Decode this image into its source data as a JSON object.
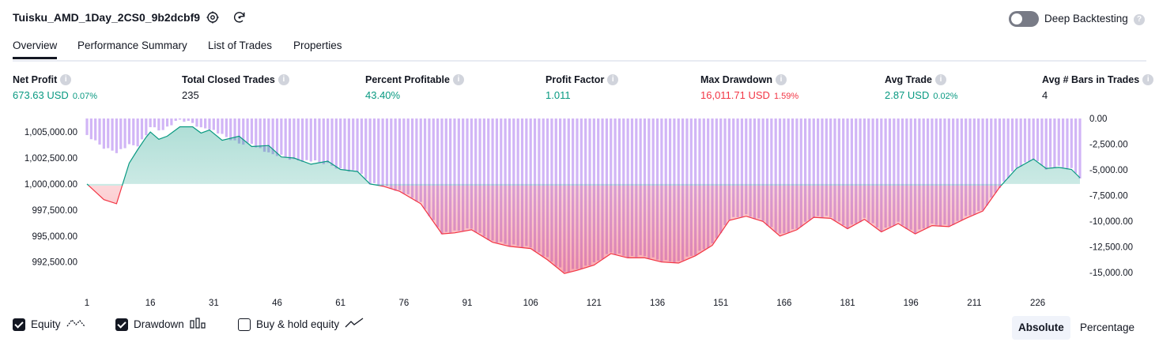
{
  "header": {
    "title": "Tuisku_AMD_1Day_2CS0_9b2dcbf9",
    "settings_icon": "gear-icon",
    "reload_icon": "reload-icon",
    "deep_backtesting_label": "Deep Backtesting",
    "deep_backtesting_enabled": false,
    "help_glyph": "?"
  },
  "tabs": [
    {
      "label": "Overview",
      "active": true
    },
    {
      "label": "Performance Summary",
      "active": false
    },
    {
      "label": "List of Trades",
      "active": false
    },
    {
      "label": "Properties",
      "active": false
    }
  ],
  "metrics": [
    {
      "label": "Net Profit",
      "value": "673.63 USD",
      "pct": "0.07%",
      "color": "#089981"
    },
    {
      "label": "Total Closed Trades",
      "value": "235",
      "pct": "",
      "color": "#131722"
    },
    {
      "label": "Percent Profitable",
      "value": "43.40%",
      "pct": "",
      "color": "#089981"
    },
    {
      "label": "Profit Factor",
      "value": "1.011",
      "pct": "",
      "color": "#089981"
    },
    {
      "label": "Max Drawdown",
      "value": "16,011.71 USD",
      "pct": "1.59%",
      "color": "#f23645"
    },
    {
      "label": "Avg Trade",
      "value": "2.87 USD",
      "pct": "0.02%",
      "color": "#089981"
    },
    {
      "label": "Avg # Bars in Trades",
      "value": "4",
      "pct": "",
      "color": "#131722"
    }
  ],
  "chart_data": {
    "type": "area",
    "x_ticks": [
      "1",
      "16",
      "31",
      "46",
      "61",
      "76",
      "91",
      "106",
      "121",
      "136",
      "151",
      "166",
      "181",
      "196",
      "211",
      "226"
    ],
    "x_range": [
      1,
      236
    ],
    "left_axis": {
      "ticks": [
        "1,005,000.00",
        "1,002,500.00",
        "1,000,000.00",
        "997,500.00",
        "995,000.00",
        "992,500.00"
      ],
      "range": [
        990500,
        1006300
      ],
      "baseline": 1000000
    },
    "right_axis": {
      "ticks": [
        "0.00",
        "-2,500.00",
        "-5,000.00",
        "-7,500.00",
        "-10,000.00",
        "-12,500.00",
        "-15,000.00"
      ],
      "range": [
        -16000,
        0
      ]
    },
    "series": [
      {
        "name": "Equity",
        "style": "line",
        "x": [
          1,
          5,
          8,
          11,
          13,
          15,
          16,
          18,
          20,
          23,
          26,
          28,
          30,
          33,
          37,
          40,
          44,
          47,
          50,
          54,
          58,
          61,
          65,
          68,
          71,
          75,
          80,
          85,
          88,
          92,
          97,
          101,
          106,
          110,
          114,
          117,
          121,
          125,
          129,
          133,
          137,
          141,
          145,
          149,
          153,
          157,
          161,
          165,
          169,
          173,
          177,
          181,
          185,
          189,
          193,
          197,
          201,
          205,
          209,
          213,
          217,
          221,
          225,
          228,
          231,
          234,
          236
        ],
        "values": [
          1000000,
          998500,
          998100,
          1002000,
          1003300,
          1004500,
          1005000,
          1004300,
          1004600,
          1005500,
          1005500,
          1004900,
          1005200,
          1004200,
          1004600,
          1003600,
          1003700,
          1002600,
          1002500,
          1001900,
          1002200,
          1001400,
          1001200,
          1000000,
          999800,
          999300,
          998100,
          995200,
          995300,
          995600,
          994400,
          994000,
          993800,
          992700,
          991400,
          991700,
          992200,
          993300,
          992900,
          992900,
          992500,
          992400,
          993100,
          994100,
          996500,
          996900,
          996400,
          995000,
          995600,
          996800,
          996700,
          995700,
          996600,
          995400,
          996200,
          995200,
          996000,
          995900,
          996700,
          997400,
          999700,
          1001500,
          1002400,
          1001500,
          1001600,
          1001400,
          1000600
        ]
      },
      {
        "name": "Drawdown",
        "style": "bars",
        "x": [
          1,
          5,
          8,
          11,
          13,
          15,
          16,
          18,
          20,
          23,
          26,
          28,
          30,
          33,
          37,
          40,
          44,
          47,
          50,
          54,
          58,
          61,
          65,
          68,
          71,
          75,
          80,
          85,
          88,
          92,
          97,
          101,
          106,
          110,
          114,
          117,
          121,
          125,
          129,
          133,
          137,
          141,
          145,
          149,
          153,
          157,
          161,
          165,
          169,
          173,
          177,
          181,
          185,
          189,
          193,
          197,
          201,
          205,
          209,
          213,
          217,
          221,
          225,
          228,
          231,
          234,
          236
        ],
        "values": [
          -1500,
          -2700,
          -3100,
          -2500,
          -2500,
          -1500,
          -600,
          -1000,
          -700,
          0,
          -300,
          -800,
          -800,
          -1500,
          -2300,
          -2300,
          -3300,
          -3500,
          -3900,
          -4000,
          -4300,
          -4800,
          -5000,
          -6200,
          -6400,
          -6900,
          -8100,
          -11000,
          -10900,
          -10600,
          -11800,
          -12200,
          -12400,
          -13500,
          -14800,
          -14500,
          -14000,
          -12900,
          -13300,
          -13300,
          -13700,
          -13800,
          -13100,
          -12100,
          -9700,
          -9300,
          -9800,
          -11200,
          -10600,
          -9400,
          -9500,
          -10500,
          -9600,
          -10800,
          -10000,
          -11000,
          -10200,
          -10300,
          -9500,
          -8800,
          -6500,
          -4700,
          -3800,
          -4700,
          -4600,
          -4800,
          -5600
        ]
      }
    ]
  },
  "legend": [
    {
      "label": "Equity",
      "checked": true,
      "icon": "equity-line-icon"
    },
    {
      "label": "Drawdown",
      "checked": true,
      "icon": "drawdown-bars-icon"
    },
    {
      "label": "Buy & hold equity",
      "checked": false,
      "icon": "buy-hold-line-icon"
    }
  ],
  "scale_toggle": {
    "absolute": "Absolute",
    "percentage": "Percentage",
    "selected": "Absolute"
  },
  "colors": {
    "profit": "#089981",
    "loss": "#f23645",
    "drawdown_bar": "#c9a8f5",
    "text": "#131722"
  }
}
